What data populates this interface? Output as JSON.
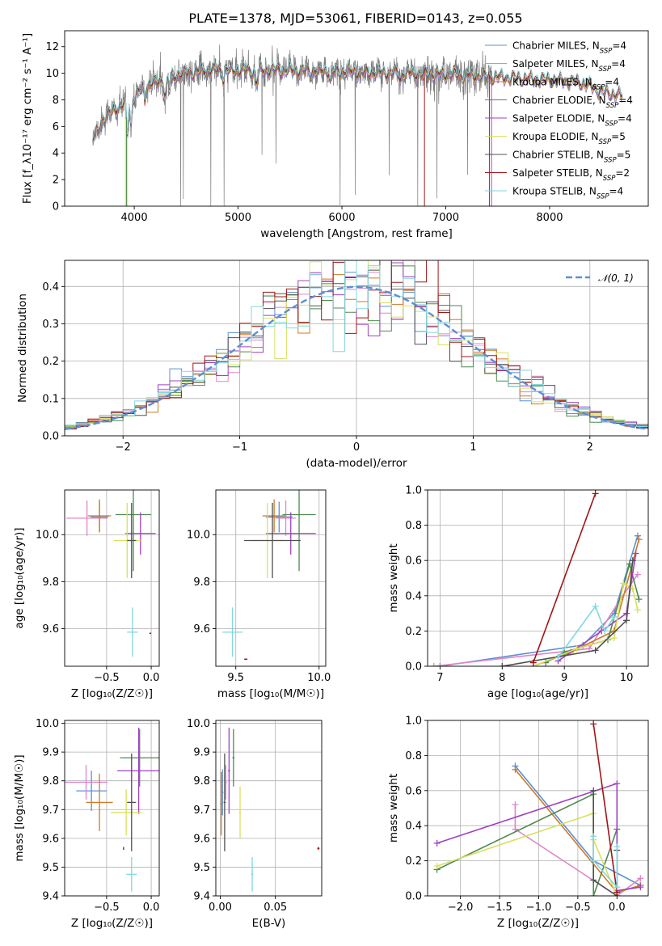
{
  "figure": {
    "title": "PLATE=1378, MJD=53061, FIBERID=0143, z=0.055"
  },
  "colors": [
    "#5b8fd6",
    "#e085c8",
    "#d17a22",
    "#4f8a4f",
    "#a040c0",
    "#d8e060",
    "#505050",
    "#a01515",
    "#80d8e0"
  ],
  "chart_data": [
    {
      "id": "spectrum",
      "type": "line",
      "xlabel": "wavelength [Angstrom, rest frame]",
      "ylabel": "Flux [f_λ10⁻¹⁷ erg cm⁻² s⁻¹ A⁻¹]",
      "xlim": [
        3330,
        8950
      ],
      "ylim": [
        0,
        13.2
      ],
      "xticks": [
        4000,
        5000,
        6000,
        7000,
        8000
      ],
      "yticks": [
        0,
        2,
        4,
        6,
        8,
        10,
        12
      ],
      "legend_position": "upper right",
      "legend": [
        {
          "main": "Chabrier MILES, N",
          "sub": "SSP",
          "tail": "=4"
        },
        {
          "main": "Salpeter MILES, N",
          "sub": "SSP",
          "tail": "=4"
        },
        {
          "main": "Kroupa MILES, N",
          "sub": "SSP",
          "tail": "=4"
        },
        {
          "main": "Chabrier ELODIE, N",
          "sub": "SSP",
          "tail": "=4"
        },
        {
          "main": "Salpeter ELODIE, N",
          "sub": "SSP",
          "tail": "=4"
        },
        {
          "main": "Kroupa ELODIE, N",
          "sub": "SSP",
          "tail": "=5"
        },
        {
          "main": "Chabrier STELIB, N",
          "sub": "SSP",
          "tail": "=5"
        },
        {
          "main": "Salpeter STELIB, N",
          "sub": "SSP",
          "tail": "=2"
        },
        {
          "main": "Kroupa STELIB, N",
          "sub": "SSP",
          "tail": "=4"
        }
      ],
      "continuum": {
        "x": [
          3600,
          3700,
          3800,
          3900,
          4000,
          4100,
          4200,
          4300,
          4400,
          4500,
          4700,
          5000,
          5500,
          6000,
          6500,
          7000,
          7500,
          8000,
          8300,
          8400,
          8500,
          8700
        ],
        "y": [
          5.0,
          6.6,
          7.2,
          7.6,
          8.2,
          9.0,
          9.3,
          9.5,
          9.8,
          10.0,
          10.2,
          10.2,
          10.2,
          10.1,
          10.0,
          9.9,
          9.7,
          9.5,
          9.3,
          9.0,
          8.6,
          8.3
        ]
      },
      "observed_range": [
        3600,
        7450
      ],
      "model_range": [
        3600,
        8700
      ]
    },
    {
      "id": "residuals",
      "type": "histogram",
      "xlabel": "(data-model)/error",
      "ylabel": "Normed distribution",
      "xlim": [
        -2.5,
        2.5
      ],
      "ylim": [
        0,
        0.47
      ],
      "xticks": [
        -2,
        -1,
        0,
        1,
        2
      ],
      "yticks": [
        0.0,
        0.1,
        0.2,
        0.3,
        0.4
      ],
      "grid": true,
      "reference_curve": {
        "label": "𝒩(0, 1)",
        "mean": 0,
        "sigma": 1,
        "style": "dashed"
      },
      "bin_width": 0.1,
      "legend_position": "upper right"
    },
    {
      "id": "age_vs_Z",
      "type": "errorbar",
      "xlabel": "Z [log₁₀(Z/Z☉)]",
      "ylabel": "age  [log₁₀(age/yr)]",
      "xlim": [
        -0.97,
        0.09
      ],
      "ylim": [
        9.44,
        10.19
      ],
      "xticks": [
        -0.5,
        0.0
      ],
      "yticks": [
        9.6,
        9.8,
        10.0
      ],
      "grid": true,
      "points": [
        {
          "x": -0.58,
          "y": 10.075,
          "xerr": 0.1,
          "yerr": 0.065
        },
        {
          "x": -0.72,
          "y": 10.07,
          "xerr": 0.23,
          "yerr": 0.075
        },
        {
          "x": -0.58,
          "y": 10.08,
          "xerr": 0.13,
          "yerr": 0.07
        },
        {
          "x": -0.2,
          "y": 10.085,
          "xerr": 0.2,
          "yerr": 0.24
        },
        {
          "x": -0.12,
          "y": 10.005,
          "xerr": 0.17,
          "yerr": 0.09
        },
        {
          "x": -0.27,
          "y": 9.975,
          "xerr": 0.15,
          "yerr": 0.16
        },
        {
          "x": -0.22,
          "y": 9.975,
          "xerr": 0.05,
          "yerr": 0.16
        },
        {
          "x": -0.01,
          "y": 9.58,
          "xerr": 0.01,
          "yerr": 0.003
        },
        {
          "x": -0.21,
          "y": 9.585,
          "xerr": 0.06,
          "yerr": 0.105
        }
      ]
    },
    {
      "id": "age_vs_mass",
      "type": "errorbar",
      "xlabel": "mass [log₁₀(M/M☉)]",
      "ylabel": "",
      "xlim": [
        9.38,
        10.04
      ],
      "ylim": [
        9.44,
        10.19
      ],
      "xticks": [
        9.5,
        10.0
      ],
      "yticks": [
        9.6,
        9.8,
        10.0
      ],
      "grid": true,
      "points": [
        {
          "x": 9.76,
          "y": 10.075,
          "xerr": 0.08,
          "yerr": 0.065
        },
        {
          "x": 9.8,
          "y": 10.07,
          "xerr": 0.06,
          "yerr": 0.075
        },
        {
          "x": 9.73,
          "y": 10.08,
          "xerr": 0.07,
          "yerr": 0.07
        },
        {
          "x": 9.88,
          "y": 10.085,
          "xerr": 0.1,
          "yerr": 0.24
        },
        {
          "x": 9.83,
          "y": 10.005,
          "xerr": 0.15,
          "yerr": 0.09
        },
        {
          "x": 9.69,
          "y": 9.975,
          "xerr": 0.1,
          "yerr": 0.16
        },
        {
          "x": 9.72,
          "y": 9.975,
          "xerr": 0.17,
          "yerr": 0.16
        },
        {
          "x": 9.56,
          "y": 9.47,
          "xerr": 0.01,
          "yerr": 0.003
        },
        {
          "x": 9.48,
          "y": 9.585,
          "xerr": 0.06,
          "yerr": 0.105
        }
      ]
    },
    {
      "id": "mass_weight_vs_age",
      "type": "line",
      "xlabel": "age  [log₁₀(age/yr)]",
      "ylabel": "mass weight",
      "xlim": [
        6.8,
        10.35
      ],
      "ylim": [
        0,
        1.0
      ],
      "xticks": [
        7,
        8,
        9,
        10
      ],
      "yticks": [
        0.0,
        0.2,
        0.4,
        0.6,
        0.8,
        1.0
      ],
      "grid": true,
      "series": [
        {
          "x": [
            7.0,
            9.3,
            9.8,
            10.18
          ],
          "y": [
            0.0,
            0.12,
            0.3,
            0.74
          ]
        },
        {
          "x": [
            6.9,
            9.4,
            9.9,
            10.18
          ],
          "y": [
            0.0,
            0.1,
            0.38,
            0.52
          ]
        },
        {
          "x": [
            8.5,
            9.1,
            9.8,
            10.2
          ],
          "y": [
            0.0,
            0.08,
            0.2,
            0.72
          ]
        },
        {
          "x": [
            8.7,
            9.0,
            9.7,
            10.05,
            10.2
          ],
          "y": [
            0.02,
            0.08,
            0.15,
            0.58,
            0.38
          ]
        },
        {
          "x": [
            8.9,
            9.6,
            10.0,
            10.15
          ],
          "y": [
            0.03,
            0.2,
            0.3,
            0.64
          ]
        },
        {
          "x": [
            8.5,
            9.2,
            9.8,
            9.95,
            10.1,
            10.18
          ],
          "y": [
            0.0,
            0.1,
            0.16,
            0.47,
            0.44,
            0.32
          ]
        },
        {
          "x": [
            8.0,
            9.5,
            10.0,
            10.1
          ],
          "y": [
            0.0,
            0.09,
            0.26,
            0.6
          ]
        },
        {
          "x": [
            8.5,
            9.5
          ],
          "y": [
            0.02,
            0.98
          ]
        },
        {
          "x": [
            8.9,
            9.5,
            9.65,
            9.8
          ],
          "y": [
            0.05,
            0.34,
            0.2,
            0.28
          ]
        }
      ]
    },
    {
      "id": "mass_vs_Z",
      "type": "errorbar",
      "xlabel": "Z [log₁₀(Z/Z☉)]",
      "ylabel": "mass [log₁₀(M/M☉)]",
      "xlim": [
        -0.97,
        0.09
      ],
      "ylim": [
        9.4,
        10.01
      ],
      "xticks": [
        -0.5,
        0.0
      ],
      "yticks": [
        9.4,
        9.5,
        9.6,
        9.7,
        9.8,
        9.9,
        10.0
      ],
      "grid": true,
      "points": [
        {
          "x": -0.67,
          "y": 9.765,
          "xerr": 0.17,
          "yerr": 0.07
        },
        {
          "x": -0.73,
          "y": 9.795,
          "xerr": 0.24,
          "yerr": 0.06
        },
        {
          "x": -0.58,
          "y": 9.725,
          "xerr": 0.15,
          "yerr": 0.1
        },
        {
          "x": -0.13,
          "y": 9.88,
          "xerr": 0.22,
          "yerr": 0.1
        },
        {
          "x": -0.14,
          "y": 9.835,
          "xerr": 0.24,
          "yerr": 0.15
        },
        {
          "x": -0.28,
          "y": 9.69,
          "xerr": 0.17,
          "yerr": 0.08
        },
        {
          "x": -0.22,
          "y": 9.725,
          "xerr": 0.05,
          "yerr": 0.17
        },
        {
          "x": -0.31,
          "y": 9.565,
          "xerr": 0.005,
          "yerr": 0.005
        },
        {
          "x": -0.22,
          "y": 9.475,
          "xerr": 0.06,
          "yerr": 0.06
        }
      ]
    },
    {
      "id": "mass_vs_EBV",
      "type": "errorbar",
      "xlabel": "E(B-V)",
      "ylabel": "",
      "xlim": [
        -0.004,
        0.092
      ],
      "ylim": [
        9.4,
        10.01
      ],
      "xticks": [
        0.0,
        0.05
      ],
      "yticks": [
        9.4,
        9.5,
        9.6,
        9.7,
        9.8,
        9.9,
        10.0
      ],
      "grid": true,
      "points": [
        {
          "x": 0.002,
          "y": 9.76,
          "xerr": 0.001,
          "yerr": 0.08
        },
        {
          "x": 0.005,
          "y": 9.795,
          "xerr": 0.001,
          "yerr": 0.06
        },
        {
          "x": 0.001,
          "y": 9.72,
          "xerr": 0.001,
          "yerr": 0.11
        },
        {
          "x": 0.012,
          "y": 9.88,
          "xerr": 0.001,
          "yerr": 0.1
        },
        {
          "x": 0.008,
          "y": 9.835,
          "xerr": 0.001,
          "yerr": 0.15
        },
        {
          "x": 0.018,
          "y": 9.69,
          "xerr": 0.001,
          "yerr": 0.09
        },
        {
          "x": 0.004,
          "y": 9.725,
          "xerr": 0.001,
          "yerr": 0.17
        },
        {
          "x": 0.089,
          "y": 9.565,
          "xerr": 0.001,
          "yerr": 0.005
        },
        {
          "x": 0.029,
          "y": 9.475,
          "xerr": 0.001,
          "yerr": 0.06
        }
      ]
    },
    {
      "id": "mass_weight_vs_Z",
      "type": "line",
      "xlabel": "Z [log₁₀(Z/Z☉)]",
      "ylabel": "mass weight",
      "xlim": [
        -2.42,
        0.4
      ],
      "ylim": [
        0,
        1.0
      ],
      "xticks": [
        -2.0,
        -1.5,
        -1.0,
        -0.5,
        0.0
      ],
      "yticks": [
        0.0,
        0.2,
        0.4,
        0.6,
        0.8,
        1.0
      ],
      "grid": true,
      "series": [
        {
          "x": [
            -1.3,
            -0.3,
            0.3
          ],
          "y": [
            0.74,
            0.2,
            0.06
          ]
        },
        {
          "x": [
            -1.3,
            -1.3,
            0.0,
            0.3
          ],
          "y": [
            0.52,
            0.38,
            0.0,
            0.1
          ]
        },
        {
          "x": [
            -1.3,
            0.0,
            0.3
          ],
          "y": [
            0.72,
            0.02,
            0.06
          ]
        },
        {
          "x": [
            -2.3,
            -0.3,
            -0.3,
            0.0,
            0.0
          ],
          "y": [
            0.15,
            0.58,
            0.0,
            0.38,
            0.02
          ]
        },
        {
          "x": [
            -2.3,
            0.0,
            0.0,
            0.3
          ],
          "y": [
            0.3,
            0.64,
            0.03,
            0.05
          ]
        },
        {
          "x": [
            -2.3,
            -0.3,
            -0.3,
            0.0
          ],
          "y": [
            0.17,
            0.47,
            0.32,
            0.0
          ]
        },
        {
          "x": [
            -0.3,
            -0.3,
            0.0,
            0.0
          ],
          "y": [
            0.6,
            0.09,
            0.0,
            0.26
          ]
        },
        {
          "x": [
            -0.3,
            0.0
          ],
          "y": [
            0.98,
            0.02
          ]
        },
        {
          "x": [
            -0.3,
            -0.3,
            0.0,
            0.0
          ],
          "y": [
            0.34,
            0.2,
            0.05,
            0.28
          ]
        }
      ]
    }
  ]
}
